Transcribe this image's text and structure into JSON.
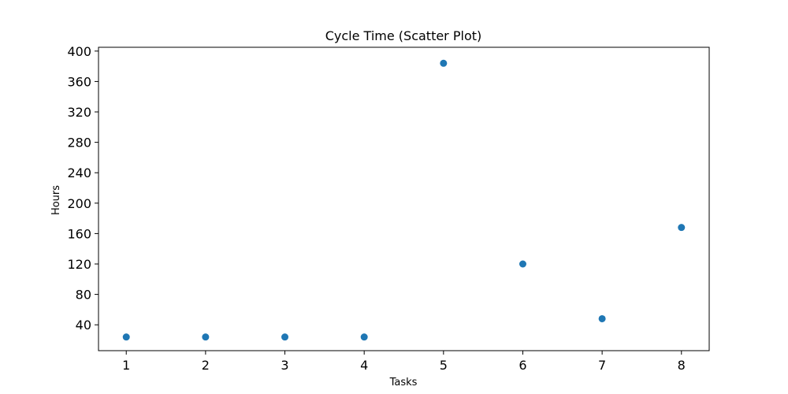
{
  "chart_data": {
    "type": "scatter",
    "title": "Cycle Time (Scatter Plot)",
    "xlabel": "Tasks",
    "ylabel": "Hours",
    "x": [
      1,
      2,
      3,
      4,
      5,
      6,
      7,
      8
    ],
    "y": [
      24,
      24,
      24,
      24,
      384,
      120,
      48,
      168
    ],
    "xlim": [
      0.65,
      8.35
    ],
    "ylim": [
      6,
      405
    ],
    "xticks": [
      1,
      2,
      3,
      4,
      5,
      6,
      7,
      8
    ],
    "yticks": [
      40,
      80,
      120,
      160,
      200,
      240,
      280,
      320,
      360,
      400
    ],
    "grid": false,
    "marker_color": "#1f77b4"
  }
}
